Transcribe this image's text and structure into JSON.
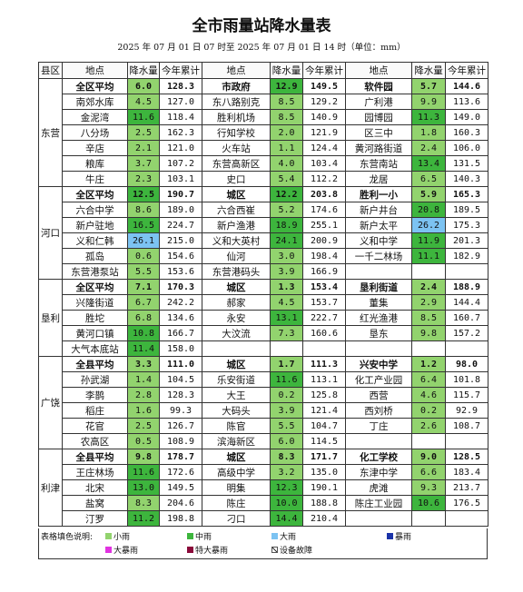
{
  "title": "全市雨量站降水量表",
  "subtitle": "2025 年 07 月 01 日 07 时至 2025 年 07 月 01 日 14 时（单位：mm）",
  "table": {
    "headers": [
      "县区",
      "地点",
      "降水量",
      "今年累计",
      "地点",
      "降水量",
      "今年累计",
      "地点",
      "降水量",
      "今年累计"
    ],
    "groups": [
      {
        "district": "东营",
        "rows": [
          [
            "全区平均",
            "6.0",
            "128.3",
            "市政府",
            "12.9",
            "149.5",
            "软件园",
            "5.7",
            "144.6"
          ],
          [
            "南郊水库",
            "4.5",
            "127.0",
            "东八路别克",
            "8.5",
            "129.2",
            "广利港",
            "9.9",
            "113.6"
          ],
          [
            "金泥湾",
            "11.6",
            "118.4",
            "胜利机场",
            "8.5",
            "140.9",
            "园博园",
            "11.3",
            "149.0"
          ],
          [
            "八分场",
            "2.5",
            "162.3",
            "行知学校",
            "2.0",
            "121.9",
            "区三中",
            "1.8",
            "160.3"
          ],
          [
            "辛店",
            "2.1",
            "121.0",
            "火车站",
            "1.1",
            "124.4",
            "黄河路街道",
            "2.4",
            "106.0"
          ],
          [
            "粮库",
            "3.7",
            "107.2",
            "东营高新区",
            "4.0",
            "103.4",
            "东营南站",
            "13.4",
            "131.5"
          ],
          [
            "牛庄",
            "2.3",
            "103.1",
            "史口",
            "5.4",
            "112.2",
            "龙居",
            "6.5",
            "140.3"
          ]
        ]
      },
      {
        "district": "河口",
        "rows": [
          [
            "全区平均",
            "12.5",
            "190.7",
            "城区",
            "12.2",
            "203.8",
            "胜利一小",
            "5.9",
            "165.3"
          ],
          [
            "六合中学",
            "8.6",
            "189.0",
            "六合西崔",
            "5.2",
            "174.6",
            "新户井台",
            "20.8",
            "189.5"
          ],
          [
            "新户驻地",
            "16.5",
            "224.7",
            "新户渔港",
            "18.9",
            "255.1",
            "新户太平",
            "26.2",
            "175.3"
          ],
          [
            "义和仁韩",
            "26.1",
            "215.0",
            "义和大英村",
            "24.1",
            "200.9",
            "义和中学",
            "11.9",
            "201.3"
          ],
          [
            "孤岛",
            "0.6",
            "154.6",
            "仙河",
            "3.0",
            "198.4",
            "一千二林场",
            "11.1",
            "182.9"
          ],
          [
            "东营港泵站",
            "5.5",
            "153.6",
            "东营港码头",
            "3.9",
            "166.9",
            null,
            null,
            null
          ]
        ]
      },
      {
        "district": "垦利",
        "rows": [
          [
            "全区平均",
            "7.1",
            "170.3",
            "城区",
            "1.3",
            "153.4",
            "垦利街道",
            "2.4",
            "188.9"
          ],
          [
            "兴隆街道",
            "6.7",
            "242.2",
            "郝家",
            "4.5",
            "153.7",
            "董集",
            "2.9",
            "144.4"
          ],
          [
            "胜坨",
            "6.8",
            "134.6",
            "永安",
            "13.1",
            "222.7",
            "红光渔港",
            "8.5",
            "160.7"
          ],
          [
            "黄河口镇",
            "10.8",
            "166.7",
            "大汶流",
            "7.3",
            "160.6",
            "垦东",
            "9.8",
            "157.2"
          ],
          [
            "大气本底站",
            "11.4",
            "158.0",
            null,
            null,
            null,
            null,
            null,
            null
          ]
        ]
      },
      {
        "district": "广饶",
        "rows": [
          [
            "全县平均",
            "3.3",
            "111.0",
            "城区",
            "1.7",
            "111.3",
            "兴安中学",
            "1.2",
            "98.0"
          ],
          [
            "孙武湖",
            "1.4",
            "104.5",
            "乐安街道",
            "11.6",
            "113.1",
            "化工产业园",
            "6.4",
            "101.8"
          ],
          [
            "李鹊",
            "2.8",
            "128.3",
            "大王",
            "0.2",
            "125.8",
            "西营",
            "4.6",
            "115.7"
          ],
          [
            "稻庄",
            "1.6",
            "99.3",
            "大码头",
            "3.9",
            "121.4",
            "西刘桥",
            "0.2",
            "92.9"
          ],
          [
            "花官",
            "2.5",
            "126.7",
            "陈官",
            "5.5",
            "104.7",
            "丁庄",
            "2.6",
            "108.7"
          ],
          [
            "农高区",
            "0.5",
            "108.9",
            "滨海新区",
            "6.0",
            "114.5",
            null,
            null,
            null
          ]
        ]
      },
      {
        "district": "利津",
        "rows": [
          [
            "全县平均",
            "9.8",
            "178.7",
            "城区",
            "8.3",
            "171.7",
            "化工学校",
            "9.0",
            "128.5"
          ],
          [
            "王庄林场",
            "11.6",
            "172.6",
            "高级中学",
            "3.2",
            "135.0",
            "东津中学",
            "6.6",
            "183.4"
          ],
          [
            "北宋",
            "13.0",
            "149.5",
            "明集",
            "12.3",
            "190.1",
            "虎滩",
            "9.3",
            "213.7"
          ],
          [
            "盐窝",
            "8.3",
            "204.6",
            "陈庄",
            "10.0",
            "188.8",
            "陈庄工业园",
            "10.6",
            "176.5"
          ],
          [
            "汀罗",
            "11.2",
            "198.8",
            "刁口",
            "14.4",
            "210.4",
            null,
            null,
            null
          ]
        ]
      }
    ]
  },
  "legend": {
    "label": "表格填色说明:",
    "items": [
      {
        "name": "小雨",
        "color": "#92d36e"
      },
      {
        "name": "中雨",
        "color": "#3db53d"
      },
      {
        "name": "大雨",
        "color": "#7cc3f2"
      },
      {
        "name": "暴雨",
        "color": "#1a33a8"
      },
      {
        "name": "大暴雨",
        "color": "#e033e0"
      },
      {
        "name": "特大暴雨",
        "color": "#8a0a3a"
      },
      {
        "name": "设备故障",
        "color": null
      }
    ]
  }
}
